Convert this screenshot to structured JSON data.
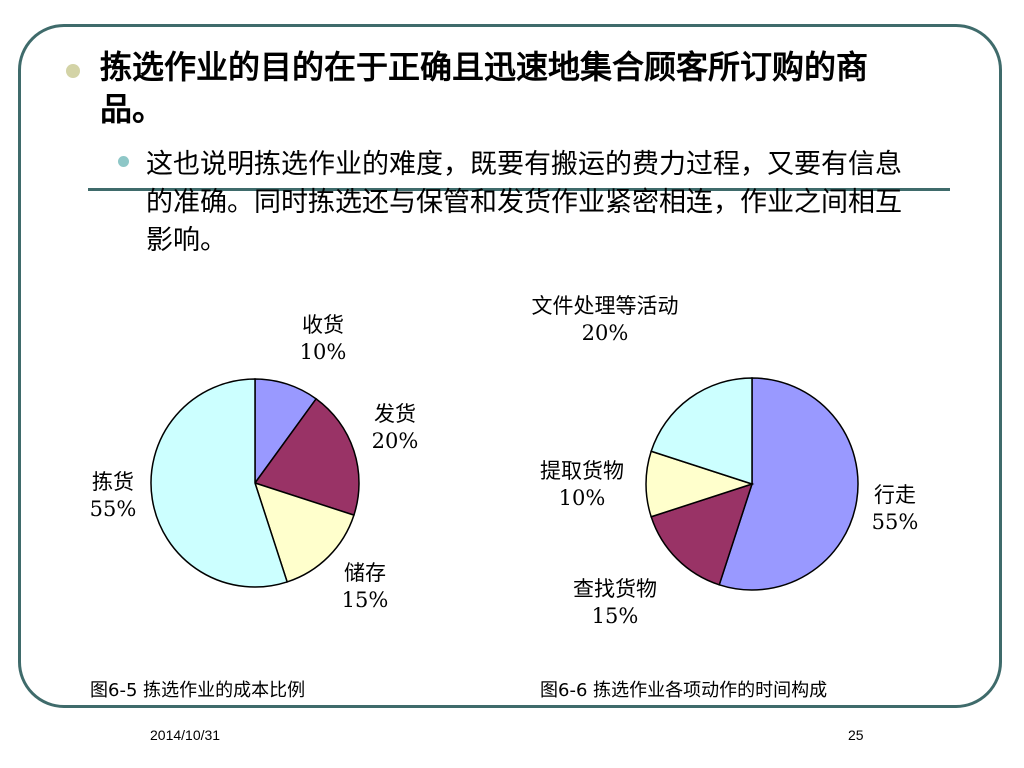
{
  "slide": {
    "title": "拣选作业的目的在于正确且迅速地集合顾客所订购的商品。",
    "sub_bullet": "这也说明拣选作业的难度，既要有搬运的费力过程，又要有信息的准确。同时拣选还与保管和发货作业紧密相连，作业之间相互影响。",
    "accent_color": "#3f6b6b"
  },
  "chart_data": [
    {
      "type": "pie",
      "caption": "图6-5 拣选作业的成本比例",
      "slices": [
        {
          "name": "收货",
          "value": 10,
          "label": "10%",
          "color": "#9999ff"
        },
        {
          "name": "发货",
          "value": 20,
          "label": "20%",
          "color": "#993366"
        },
        {
          "name": "储存",
          "value": 15,
          "label": "15%",
          "color": "#ffffcc"
        },
        {
          "name": "拣货",
          "value": 55,
          "label": "55%",
          "color": "#ccffff"
        }
      ]
    },
    {
      "type": "pie",
      "caption": "图6-6 拣选作业各项动作的时间构成",
      "slices": [
        {
          "name": "行走",
          "value": 55,
          "label": "55%",
          "color": "#9999ff"
        },
        {
          "name": "查找货物",
          "value": 15,
          "label": "15%",
          "color": "#993366"
        },
        {
          "name": "提取货物",
          "value": 10,
          "label": "10%",
          "color": "#ffffcc"
        },
        {
          "name": "文件处理等活动",
          "value": 20,
          "label": "20%",
          "color": "#ccffff"
        }
      ]
    }
  ],
  "footer": {
    "date": "2014/10/31",
    "page": "25"
  }
}
